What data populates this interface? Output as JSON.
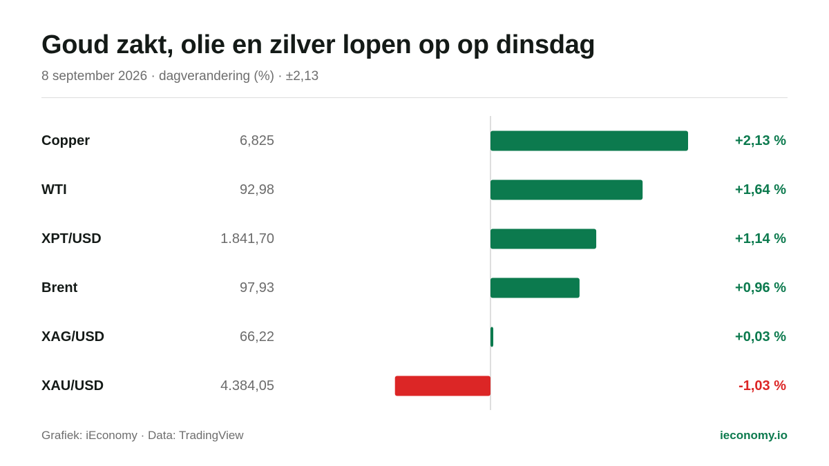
{
  "header": {
    "title": "Goud zakt, olie en zilver lopen op op dinsdag",
    "subtitle": "8 september 2026 · dagverandering (%) · ±2,13"
  },
  "footer": {
    "credit": "Grafiek: iEconomy · Data: TradingView",
    "brand": "ieconomy.io"
  },
  "colors": {
    "positive": "#0c7a4e",
    "negative": "#dc2626",
    "axis": "#d4d4d4"
  },
  "chart_data": {
    "type": "bar",
    "orientation": "horizontal",
    "unit": "%",
    "xlim": [
      -2.13,
      2.13
    ],
    "categories": [
      "Copper",
      "WTI",
      "XPT/USD",
      "Brent",
      "XAG/USD",
      "XAU/USD"
    ],
    "prices": [
      "6,825",
      "92,98",
      "1.841,70",
      "97,93",
      "66,22",
      "4.384,05"
    ],
    "values": [
      2.13,
      1.64,
      1.14,
      0.96,
      0.03,
      -1.03
    ],
    "value_labels": [
      "+2,13 %",
      "+1,64 %",
      "+1,14 %",
      "+0,96 %",
      "+0,03 %",
      "-1,03 %"
    ]
  }
}
